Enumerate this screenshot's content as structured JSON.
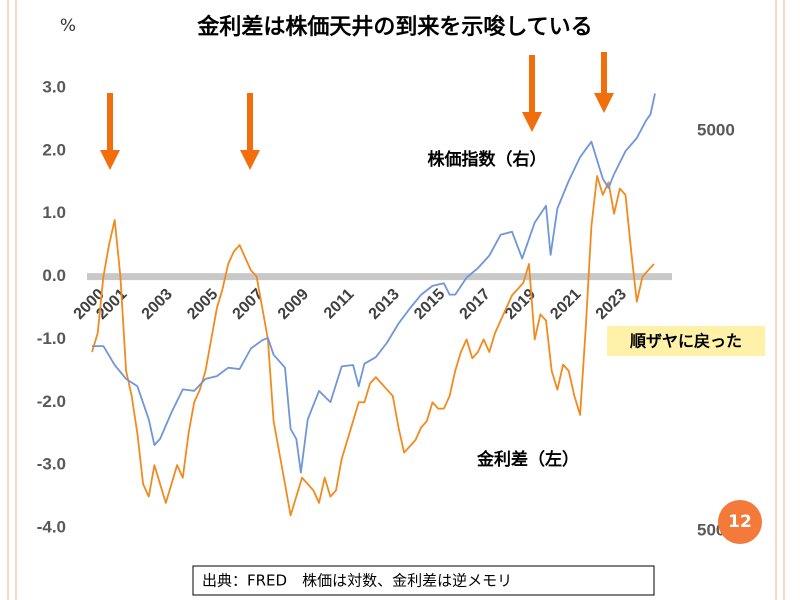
{
  "chart_data": {
    "type": "line",
    "title": "金利差は株価天井の到来を示唆している",
    "y_unit": "%",
    "source": "出典：FRED　株価は対数、金利差は逆メモリ",
    "annotation": "順ザヤに戻った",
    "page_number": "12",
    "xlim": [
      2000,
      2024.8
    ],
    "xticks": [
      2000,
      2001,
      2003,
      2005,
      2007,
      2009,
      2011,
      2013,
      2015,
      2017,
      2019,
      2021,
      2023
    ],
    "ylim": [
      -4,
      3
    ],
    "yticks": [
      {
        "value": 3,
        "label": "3.0"
      },
      {
        "value": 2,
        "label": "2.0"
      },
      {
        "value": 1,
        "label": "1.0"
      },
      {
        "value": 0,
        "label": "0.0"
      },
      {
        "value": -1,
        "label": "-1.0"
      },
      {
        "value": -2,
        "label": "-2.0"
      },
      {
        "value": -3,
        "label": "-3.0"
      },
      {
        "value": -4,
        "label": "-4.0"
      }
    ],
    "y2lim": [
      509,
      6400
    ],
    "y2ticks": [
      500,
      5000
    ],
    "y2_log": true,
    "zero_line": true,
    "series": [
      {
        "name": "金利差（左）",
        "color": "#f28a1f",
        "x": [
          2000,
          2000.25,
          2000.5,
          2000.75,
          2001,
          2001.25,
          2001.5,
          2001.75,
          2002,
          2002.25,
          2002.5,
          2002.75,
          2003,
          2003.25,
          2003.5,
          2003.75,
          2004,
          2004.25,
          2004.5,
          2004.75,
          2005,
          2005.25,
          2005.5,
          2005.75,
          2006,
          2006.25,
          2006.5,
          2006.75,
          2007,
          2007.25,
          2007.5,
          2007.75,
          2008,
          2008.25,
          2008.5,
          2008.75,
          2009,
          2009.25,
          2009.5,
          2009.75,
          2010,
          2010.25,
          2010.5,
          2010.75,
          2011,
          2011.25,
          2011.5,
          2011.75,
          2012,
          2012.25,
          2012.5,
          2012.75,
          2013,
          2013.25,
          2013.5,
          2013.75,
          2014,
          2014.25,
          2014.5,
          2014.75,
          2015,
          2015.25,
          2015.5,
          2015.75,
          2016,
          2016.25,
          2016.5,
          2016.75,
          2017,
          2017.25,
          2017.5,
          2017.75,
          2018,
          2018.25,
          2018.5,
          2018.75,
          2019,
          2019.25,
          2019.5,
          2019.75,
          2020,
          2020.25,
          2020.5,
          2020.75,
          2021,
          2021.25,
          2021.5,
          2021.75,
          2022,
          2022.25,
          2022.5,
          2022.75,
          2023,
          2023.25,
          2023.5,
          2023.75,
          2024,
          2024.25,
          2024.5,
          2024.75
        ],
        "values": [
          -1.2,
          -0.9,
          0.0,
          0.5,
          0.9,
          0.0,
          -1.5,
          -1.9,
          -2.5,
          -3.3,
          -3.5,
          -3.0,
          -3.3,
          -3.6,
          -3.3,
          -3.0,
          -3.2,
          -2.5,
          -2.0,
          -1.8,
          -1.5,
          -1.0,
          -0.5,
          -0.2,
          0.2,
          0.4,
          0.5,
          0.3,
          0.1,
          0.0,
          -0.5,
          -1.0,
          -2.3,
          -2.8,
          -3.3,
          -3.8,
          -3.5,
          -3.2,
          -3.3,
          -3.4,
          -3.6,
          -3.2,
          -3.5,
          -3.4,
          -2.9,
          -2.6,
          -2.3,
          -2.0,
          -2.0,
          -1.7,
          -1.6,
          -1.7,
          -1.8,
          -1.9,
          -2.4,
          -2.8,
          -2.7,
          -2.6,
          -2.4,
          -2.3,
          -2.0,
          -2.1,
          -2.1,
          -1.9,
          -1.5,
          -1.2,
          -1.0,
          -1.3,
          -1.2,
          -1.0,
          -1.2,
          -0.9,
          -0.7,
          -0.5,
          -0.3,
          -0.2,
          -0.1,
          0.2,
          -1.0,
          -0.6,
          -0.7,
          -1.5,
          -1.8,
          -1.4,
          -1.5,
          -1.9,
          -2.2,
          -0.8,
          0.8,
          1.6,
          1.3,
          1.5,
          1.0,
          1.4,
          1.3,
          0.4,
          -0.4,
          0.0,
          0.1,
          0.2
        ]
      },
      {
        "name": "株価指数（右）",
        "color": "#7096d8",
        "axis": "y2",
        "x": [
          2000,
          2000.5,
          2001,
          2001.5,
          2002,
          2002.5,
          2002.75,
          2003,
          2003.5,
          2004,
          2004.5,
          2005,
          2005.5,
          2006,
          2006.5,
          2007,
          2007.5,
          2007.75,
          2008,
          2008.5,
          2008.75,
          2009,
          2009.2,
          2009.5,
          2010,
          2010.5,
          2011,
          2011.5,
          2011.75,
          2012,
          2012.5,
          2013,
          2013.5,
          2014,
          2014.5,
          2015,
          2015.5,
          2015.75,
          2016,
          2016.5,
          2017,
          2017.5,
          2018,
          2018.5,
          2018.95,
          2019.5,
          2020,
          2020.2,
          2020.5,
          2021,
          2021.5,
          2022,
          2022.5,
          2022.75,
          2023,
          2023.5,
          2024,
          2024.4,
          2024.6,
          2024.8
        ],
        "values": [
          1450,
          1450,
          1300,
          1200,
          1150,
          950,
          820,
          850,
          990,
          1130,
          1120,
          1200,
          1220,
          1280,
          1270,
          1430,
          1500,
          1520,
          1380,
          1280,
          900,
          850,
          700,
          950,
          1120,
          1050,
          1290,
          1300,
          1150,
          1310,
          1360,
          1480,
          1650,
          1800,
          1950,
          2050,
          2080,
          1950,
          1950,
          2150,
          2270,
          2440,
          2750,
          2800,
          2400,
          2950,
          3250,
          2450,
          3200,
          3750,
          4300,
          4700,
          3800,
          3600,
          3900,
          4450,
          4800,
          5300,
          5500,
          6200
        ]
      }
    ]
  }
}
